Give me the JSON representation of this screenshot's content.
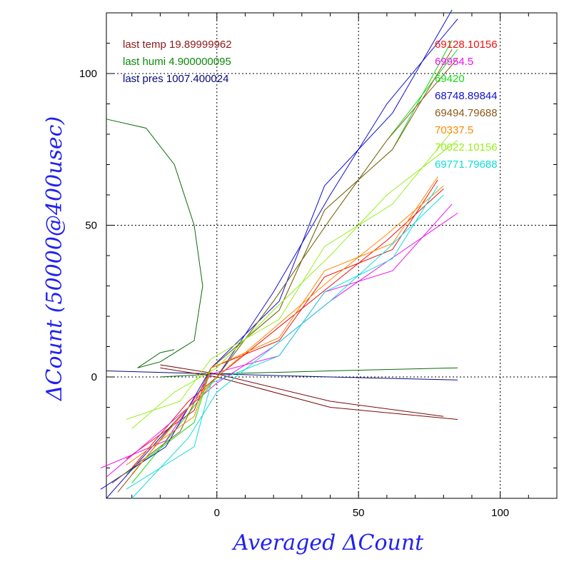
{
  "chart_data": {
    "type": "line",
    "xlabel": "Averaged   ΔCount",
    "ylabel": "ΔCount (50000@400usec)",
    "xlim": [
      -39,
      120
    ],
    "ylim": [
      -40,
      120
    ],
    "x_ticks": [
      0,
      50,
      100
    ],
    "y_ticks": [
      0,
      50,
      100
    ],
    "grid": "dotted at major ticks",
    "info_lines": [
      {
        "text": "last temp 19.89999962",
        "color": "#8b1a1a"
      },
      {
        "text": "last humi 4.900000095",
        "color": "#0a8a0a"
      },
      {
        "text": "last pres 1007.400024",
        "color": "#0a0a7a"
      }
    ],
    "series": [
      {
        "name": "69128.10156",
        "color": "#ee1111",
        "points": [
          [
            -30,
            -30
          ],
          [
            -10,
            -8
          ],
          [
            0,
            0
          ],
          [
            20,
            15
          ],
          [
            40,
            30
          ],
          [
            60,
            45
          ],
          [
            80,
            62
          ]
        ]
      },
      {
        "name": "69954.5",
        "color": "#ee11ee",
        "points": [
          [
            -39,
            -33
          ],
          [
            -20,
            -18
          ],
          [
            0,
            -2
          ],
          [
            20,
            10
          ],
          [
            40,
            25
          ],
          [
            60,
            38
          ],
          [
            85,
            54
          ]
        ]
      },
      {
        "name": "69420",
        "color": "#11dd11",
        "points": [
          [
            -30,
            -35
          ],
          [
            -10,
            -12
          ],
          [
            0,
            0
          ],
          [
            20,
            25
          ],
          [
            40,
            52
          ],
          [
            60,
            78
          ],
          [
            85,
            108
          ]
        ]
      },
      {
        "name": "68748.89844",
        "color": "#1111cc",
        "points": [
          [
            -39,
            -40
          ],
          [
            -20,
            -20
          ],
          [
            0,
            0
          ],
          [
            20,
            28
          ],
          [
            40,
            60
          ],
          [
            60,
            90
          ],
          [
            85,
            118
          ]
        ]
      },
      {
        "name": "69494.79688",
        "color": "#8b5a1a",
        "points": [
          [
            -35,
            -38
          ],
          [
            -15,
            -15
          ],
          [
            0,
            0
          ],
          [
            20,
            25
          ],
          [
            40,
            52
          ],
          [
            60,
            78
          ],
          [
            85,
            105
          ]
        ]
      },
      {
        "name": "70337.5",
        "color": "#ff8800",
        "points": [
          [
            -30,
            -32
          ],
          [
            -10,
            -10
          ],
          [
            0,
            0
          ],
          [
            20,
            16
          ],
          [
            40,
            32
          ],
          [
            60,
            47
          ],
          [
            80,
            63
          ]
        ]
      },
      {
        "name": "70022.10156",
        "color": "#99ee22",
        "points": [
          [
            -30,
            -17
          ],
          [
            -15,
            -5
          ],
          [
            0,
            3
          ],
          [
            20,
            22
          ],
          [
            40,
            40
          ],
          [
            60,
            60
          ],
          [
            85,
            78
          ]
        ]
      },
      {
        "name": "69771.79688",
        "color": "#11dddd",
        "points": [
          [
            -30,
            -40
          ],
          [
            -10,
            -20
          ],
          [
            0,
            -5
          ],
          [
            20,
            10
          ],
          [
            40,
            25
          ],
          [
            60,
            42
          ],
          [
            80,
            60
          ]
        ]
      }
    ],
    "extra_traces": [
      {
        "color": "#0a6a0a",
        "points": [
          [
            -39,
            85
          ],
          [
            -25,
            82
          ],
          [
            -15,
            70
          ],
          [
            -8,
            50
          ],
          [
            -5,
            30
          ],
          [
            -8,
            12
          ],
          [
            -20,
            5
          ],
          [
            -28,
            3
          ],
          [
            -20,
            8
          ],
          [
            -15,
            9
          ]
        ]
      },
      {
        "color": "#0a6a0a",
        "points": [
          [
            -20,
            0
          ],
          [
            0,
            1
          ],
          [
            40,
            2
          ],
          [
            85,
            3
          ]
        ]
      },
      {
        "color": "#0a0a7a",
        "points": [
          [
            -39,
            2
          ],
          [
            0,
            1
          ],
          [
            40,
            0
          ],
          [
            85,
            -1
          ]
        ]
      },
      {
        "color": "#7a0a0a",
        "points": [
          [
            -20,
            3
          ],
          [
            0,
            0
          ],
          [
            40,
            -10
          ],
          [
            85,
            -14
          ]
        ]
      },
      {
        "color": "#7a0a0a",
        "points": [
          [
            -20,
            4
          ],
          [
            0,
            1
          ],
          [
            40,
            -8
          ],
          [
            80,
            -13
          ]
        ]
      }
    ]
  }
}
